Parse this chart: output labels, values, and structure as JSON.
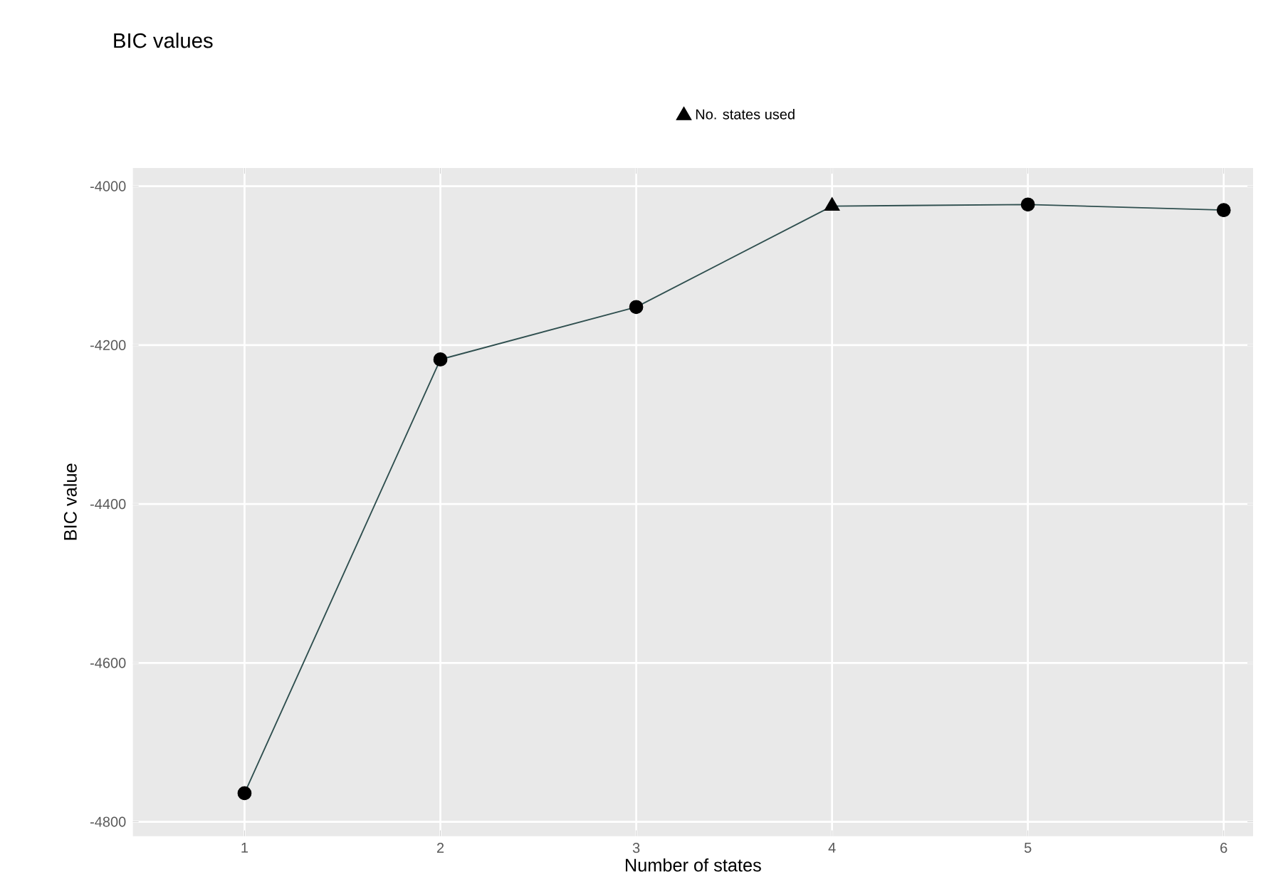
{
  "chart_data": {
    "type": "line",
    "title": "BIC values",
    "xlabel": "Number of states",
    "ylabel": "BIC value",
    "x": [
      1,
      2,
      3,
      4,
      5,
      6
    ],
    "series": [
      {
        "color": "#2f4f4f",
        "values": [
          -4764,
          -4218,
          -4152,
          -4025,
          -4023,
          -4030
        ],
        "marker": "none"
      },
      {
        "type": "scatter",
        "color": "#000000",
        "values": [
          -4764,
          -4218,
          -4152,
          null,
          -4023,
          -4030
        ],
        "marker": "circle"
      },
      {
        "type": "scatter",
        "name": "No. states used",
        "color": "#000000",
        "values": [
          null,
          null,
          null,
          -4025,
          null,
          null
        ],
        "marker": "triangle"
      }
    ],
    "xlim": [
      0.43,
      6.15
    ],
    "ylim": [
      -4818,
      -3977
    ],
    "xticks": [
      1,
      2,
      3,
      4,
      5,
      6
    ],
    "yticks": [
      -4800,
      -4600,
      -4400,
      -4200,
      -4000
    ],
    "grid": true,
    "legend": "top"
  }
}
